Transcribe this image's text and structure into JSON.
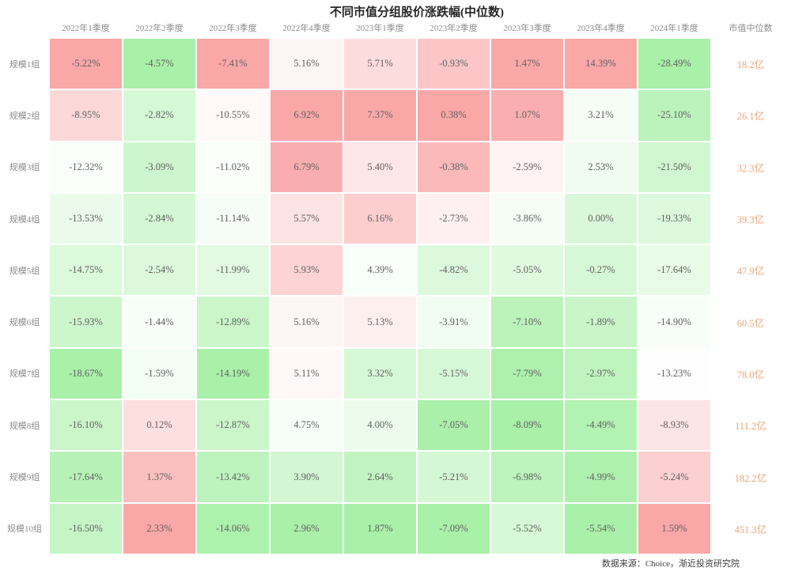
{
  "chart_data": {
    "type": "heatmap",
    "title": "不同市值分组股价涨跌幅(中位数)",
    "columns": [
      "2022年1季度",
      "2022年2季度",
      "2022年3季度",
      "2022年4季度",
      "2023年1季度",
      "2023年2季度",
      "2023年3季度",
      "2023年4季度",
      "2024年1季度"
    ],
    "value_column_header": "市值中位数",
    "value_format": "percent_2dp",
    "color_scale": "per-column linear: column max -> red, column min -> green, midpoint -> white",
    "colors": {
      "max_red": "#FAA7A8",
      "min_green": "#A9F0A9",
      "mid": "#FFFFFF",
      "cap_text": "#E9A479",
      "cell_text": "#616161",
      "label_text": "#8c8c8c"
    },
    "rows": [
      {
        "label": "规模1组",
        "values": [
          -5.22,
          -4.57,
          -7.41,
          5.16,
          5.71,
          -0.93,
          1.47,
          14.39,
          -28.49
        ],
        "median_cap": "18.2亿"
      },
      {
        "label": "规模2组",
        "values": [
          -8.95,
          -2.82,
          -10.55,
          6.92,
          7.37,
          0.38,
          1.07,
          3.21,
          -25.1
        ],
        "median_cap": "26.1亿"
      },
      {
        "label": "规模3组",
        "values": [
          -12.32,
          -3.09,
          -11.02,
          6.79,
          5.4,
          -0.38,
          -2.59,
          2.53,
          -21.5
        ],
        "median_cap": "32.3亿"
      },
      {
        "label": "规模4组",
        "values": [
          -13.53,
          -2.84,
          -11.14,
          5.57,
          6.16,
          -2.73,
          -3.86,
          0.0,
          -19.33
        ],
        "median_cap": "39.3亿"
      },
      {
        "label": "规模5组",
        "values": [
          -14.75,
          -2.54,
          -11.99,
          5.93,
          4.39,
          -4.82,
          -5.05,
          -0.27,
          -17.64
        ],
        "median_cap": "47.9亿"
      },
      {
        "label": "规模6组",
        "values": [
          -15.93,
          -1.44,
          -12.89,
          5.16,
          5.13,
          -3.91,
          -7.1,
          -1.89,
          -14.9
        ],
        "median_cap": "60.5亿"
      },
      {
        "label": "规模7组",
        "values": [
          -18.67,
          -1.59,
          -14.19,
          5.11,
          3.32,
          -5.15,
          -7.79,
          -2.97,
          -13.23
        ],
        "median_cap": "78.0亿"
      },
      {
        "label": "规模8组",
        "values": [
          -16.1,
          0.12,
          -12.87,
          4.75,
          4.0,
          -7.05,
          -8.09,
          -4.49,
          -8.93
        ],
        "median_cap": "111.2亿"
      },
      {
        "label": "规模9组",
        "values": [
          -17.64,
          1.37,
          -13.42,
          3.9,
          2.64,
          -5.21,
          -6.98,
          -4.99,
          -5.24
        ],
        "median_cap": "182.2亿"
      },
      {
        "label": "规模10组",
        "values": [
          -16.5,
          2.33,
          -14.06,
          2.96,
          1.87,
          -7.09,
          -5.52,
          -5.54,
          1.59
        ],
        "median_cap": "451.3亿"
      }
    ]
  },
  "footer": {
    "source_text": "数据来源：Choice，渐近投资研究院"
  }
}
